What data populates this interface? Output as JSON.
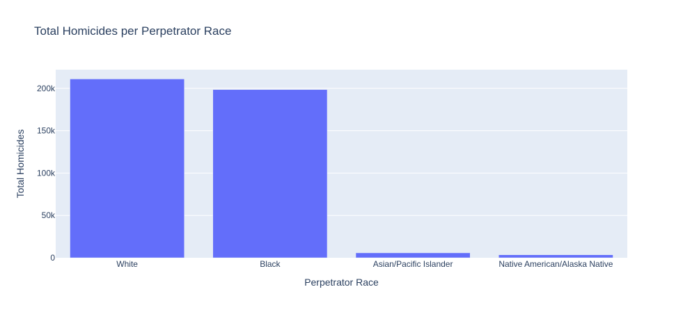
{
  "chart_data": {
    "type": "bar",
    "title": "Total Homicides per Perpetrator Race",
    "xlabel": "Perpetrator Race",
    "ylabel": "Total Homicides",
    "categories": [
      "White",
      "Black",
      "Asian/Pacific Islander",
      "Native American/Alaska Native"
    ],
    "values": [
      211000,
      198500,
      5800,
      3500
    ],
    "ylim": [
      0,
      222000
    ],
    "yticks": [
      {
        "value": 0,
        "label": "0"
      },
      {
        "value": 50000,
        "label": "50k"
      },
      {
        "value": 100000,
        "label": "100k"
      },
      {
        "value": 150000,
        "label": "150k"
      },
      {
        "value": 200000,
        "label": "200k"
      }
    ],
    "grid": true,
    "legend": "none",
    "colors": {
      "bar": "#636efa",
      "plot_bg": "#e5ecf6",
      "gridline": "#ffffff",
      "text": "#2a3f5f",
      "tick_text": "#2a3f5f"
    }
  }
}
